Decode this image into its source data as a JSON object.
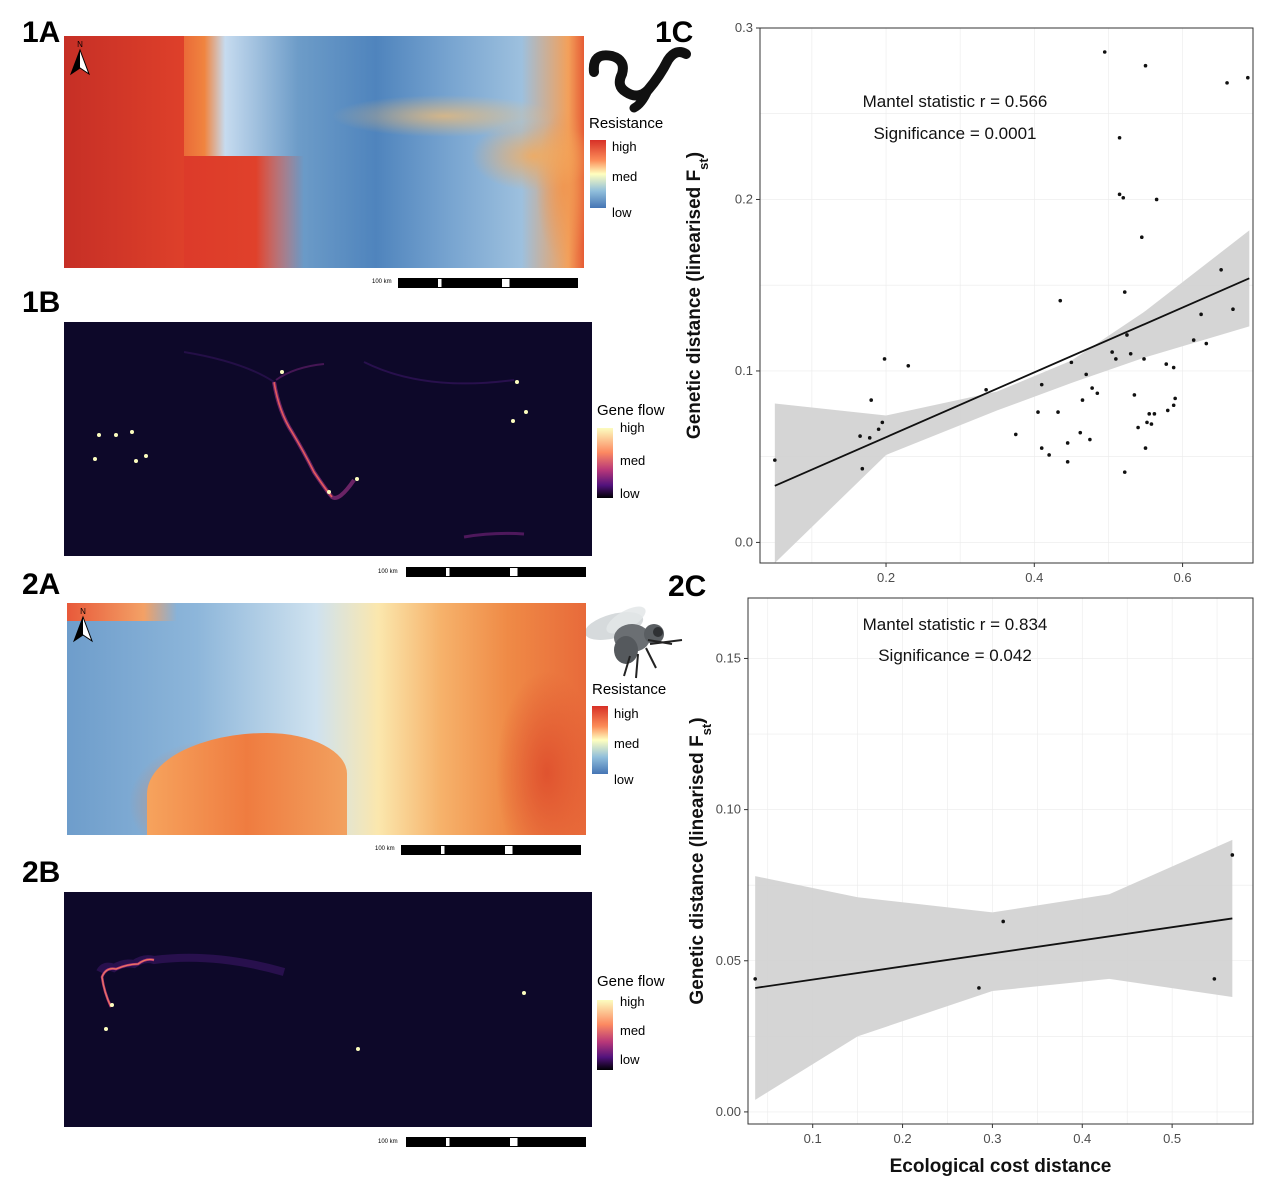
{
  "panels": {
    "p1a": "1A",
    "p1b": "1B",
    "p1c": "1C",
    "p2a": "2A",
    "p2b": "2B",
    "p2c": "2C"
  },
  "legends": {
    "resistance": {
      "title": "Resistance",
      "high": "high",
      "med": "med",
      "low": "low"
    },
    "geneflow": {
      "title": "Gene flow",
      "high": "high",
      "med": "med",
      "low": "low"
    }
  },
  "scale_label": "100 km",
  "north_label": "N",
  "colors": {
    "resistance_high": "#d73027",
    "resistance_mid": "#ffffbf",
    "resistance_low": "#4575b4",
    "geneflow_high": "#fcfdbf",
    "geneflow_mid": "#fc8961",
    "geneflow_low": "#1d1147",
    "map_dark": "#0d0829",
    "ribbon": "#d3d3d3",
    "grid": "#ebebeb"
  },
  "icons": {
    "worm": "worm-icon",
    "fly": "fly-icon",
    "north": "north-arrow-icon"
  },
  "chart_data": [
    {
      "type": "scatter",
      "id": "1C",
      "annotation_1": "Mantel statistic r = 0.566",
      "annotation_2": "Significance = 0.0001",
      "ylabel_main": "Genetic distance (linearised F",
      "ylabel_sub": "st",
      "ylabel_close": ")",
      "xlabel": "",
      "xlim": [
        0.03,
        0.695
      ],
      "ylim": [
        -0.012,
        0.3
      ],
      "xticks": [
        0.2,
        0.4,
        0.6
      ],
      "xtick_labels": [
        "0.2",
        "0.4",
        "0.6"
      ],
      "yticks": [
        0.0,
        0.1,
        0.2,
        0.3
      ],
      "ytick_labels": [
        "0.0",
        "0.1",
        "0.2",
        "0.3"
      ],
      "grid": true,
      "fit": {
        "x0": 0.05,
        "y0": 0.033,
        "x1": 0.69,
        "y1": 0.154
      },
      "ribbon_upper": [
        [
          0.05,
          0.081
        ],
        [
          0.2,
          0.074
        ],
        [
          0.35,
          0.088
        ],
        [
          0.45,
          0.106
        ],
        [
          0.55,
          0.135
        ],
        [
          0.69,
          0.182
        ]
      ],
      "ribbon_lower": [
        [
          0.05,
          -0.012
        ],
        [
          0.2,
          0.051
        ],
        [
          0.35,
          0.077
        ],
        [
          0.45,
          0.093
        ],
        [
          0.55,
          0.108
        ],
        [
          0.69,
          0.126
        ]
      ],
      "points": [
        [
          0.05,
          0.048
        ],
        [
          0.165,
          0.062
        ],
        [
          0.168,
          0.043
        ],
        [
          0.18,
          0.083
        ],
        [
          0.178,
          0.061
        ],
        [
          0.19,
          0.066
        ],
        [
          0.195,
          0.07
        ],
        [
          0.198,
          0.107
        ],
        [
          0.23,
          0.103
        ],
        [
          0.335,
          0.089
        ],
        [
          0.375,
          0.063
        ],
        [
          0.405,
          0.076
        ],
        [
          0.41,
          0.055
        ],
        [
          0.41,
          0.092
        ],
        [
          0.42,
          0.051
        ],
        [
          0.432,
          0.076
        ],
        [
          0.435,
          0.141
        ],
        [
          0.445,
          0.058
        ],
        [
          0.445,
          0.047
        ],
        [
          0.45,
          0.105
        ],
        [
          0.462,
          0.064
        ],
        [
          0.465,
          0.083
        ],
        [
          0.47,
          0.098
        ],
        [
          0.475,
          0.06
        ],
        [
          0.478,
          0.09
        ],
        [
          0.485,
          0.087
        ],
        [
          0.495,
          0.286
        ],
        [
          0.505,
          0.111
        ],
        [
          0.51,
          0.107
        ],
        [
          0.515,
          0.203
        ],
        [
          0.515,
          0.236
        ],
        [
          0.52,
          0.201
        ],
        [
          0.522,
          0.146
        ],
        [
          0.522,
          0.041
        ],
        [
          0.525,
          0.121
        ],
        [
          0.53,
          0.11
        ],
        [
          0.535,
          0.086
        ],
        [
          0.54,
          0.067
        ],
        [
          0.545,
          0.178
        ],
        [
          0.548,
          0.107
        ],
        [
          0.55,
          0.278
        ],
        [
          0.55,
          0.055
        ],
        [
          0.552,
          0.07
        ],
        [
          0.555,
          0.075
        ],
        [
          0.558,
          0.069
        ],
        [
          0.562,
          0.075
        ],
        [
          0.565,
          0.2
        ],
        [
          0.578,
          0.104
        ],
        [
          0.58,
          0.077
        ],
        [
          0.588,
          0.08
        ],
        [
          0.59,
          0.084
        ],
        [
          0.588,
          0.102
        ],
        [
          0.615,
          0.118
        ],
        [
          0.625,
          0.133
        ],
        [
          0.632,
          0.116
        ],
        [
          0.652,
          0.159
        ],
        [
          0.66,
          0.268
        ],
        [
          0.668,
          0.136
        ],
        [
          0.688,
          0.271
        ]
      ]
    },
    {
      "type": "scatter",
      "id": "2C",
      "annotation_1": "Mantel statistic r = 0.834",
      "annotation_2": "Significance = 0.042",
      "ylabel_main": "Genetic distance (linearised F",
      "ylabel_sub": "st",
      "ylabel_close": ")",
      "xlabel": "Ecological cost distance",
      "xlim": [
        0.028,
        0.59
      ],
      "ylim": [
        -0.004,
        0.17
      ],
      "xticks": [
        0.1,
        0.2,
        0.3,
        0.4,
        0.5
      ],
      "xtick_labels": [
        "0.1",
        "0.2",
        "0.3",
        "0.4",
        "0.5"
      ],
      "yticks": [
        0.0,
        0.05,
        0.1,
        0.15
      ],
      "ytick_labels": [
        "0.00",
        "0.05",
        "0.10",
        "0.15"
      ],
      "grid": true,
      "fit": {
        "x0": 0.036,
        "y0": 0.041,
        "x1": 0.567,
        "y1": 0.064
      },
      "ribbon_upper": [
        [
          0.036,
          0.078
        ],
        [
          0.15,
          0.071
        ],
        [
          0.3,
          0.066
        ],
        [
          0.43,
          0.072
        ],
        [
          0.567,
          0.09
        ]
      ],
      "ribbon_lower": [
        [
          0.036,
          0.004
        ],
        [
          0.15,
          0.025
        ],
        [
          0.3,
          0.04
        ],
        [
          0.43,
          0.044
        ],
        [
          0.567,
          0.038
        ]
      ],
      "points": [
        [
          0.036,
          0.044
        ],
        [
          0.285,
          0.041
        ],
        [
          0.312,
          0.063
        ],
        [
          0.547,
          0.044
        ],
        [
          0.567,
          0.085
        ]
      ]
    }
  ]
}
